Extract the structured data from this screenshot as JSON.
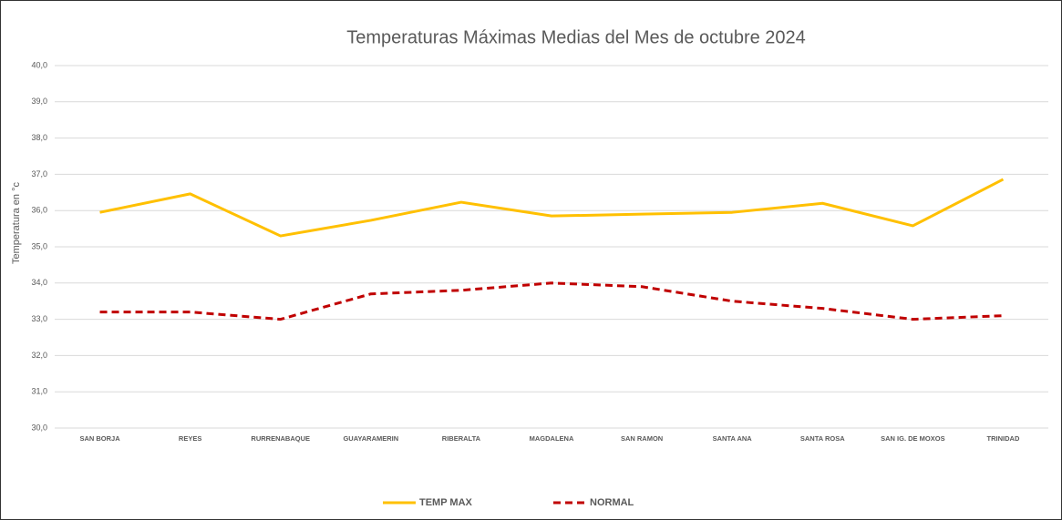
{
  "chart_data": {
    "type": "line",
    "title": "Temperaturas Máximas Medias del Mes de octubre 2024",
    "y_label": "Temperatura en °c",
    "categories": [
      "SAN BORJA",
      "REYES",
      "RURRENABAQUE",
      "GUAYARAMERIN",
      "RIBERALTA",
      "MAGDALENA",
      "SAN RAMON",
      "SANTA ANA",
      "SANTA ROSA",
      "SAN IG. DE MOXOS",
      "TRINIDAD"
    ],
    "series": [
      {
        "name": "TEMP MAX",
        "color": "#ffc000",
        "dashed": false,
        "values": [
          35.95,
          36.46,
          35.3,
          35.73,
          36.23,
          35.85,
          35.9,
          35.95,
          36.2,
          35.58,
          36.86
        ]
      },
      {
        "name": "NORMAL",
        "color": "#c00000",
        "dashed": true,
        "values": [
          33.2,
          33.2,
          33.0,
          33.7,
          33.8,
          34.0,
          33.9,
          33.5,
          33.3,
          33.0,
          33.1
        ]
      }
    ],
    "ylim": [
      30,
      40
    ],
    "yticks": [
      {
        "value": 30,
        "label": "30,0"
      },
      {
        "value": 31,
        "label": "31,0"
      },
      {
        "value": 32,
        "label": "32,0"
      },
      {
        "value": 33,
        "label": "33,0"
      },
      {
        "value": 34,
        "label": "34,0"
      },
      {
        "value": 35,
        "label": "35,0"
      },
      {
        "value": 36,
        "label": "36,0"
      },
      {
        "value": 37,
        "label": "37,0"
      },
      {
        "value": 38,
        "label": "38,0"
      },
      {
        "value": 39,
        "label": "39,0"
      },
      {
        "value": 40,
        "label": "40,0"
      }
    ],
    "grid": true,
    "legend": "bottom"
  }
}
